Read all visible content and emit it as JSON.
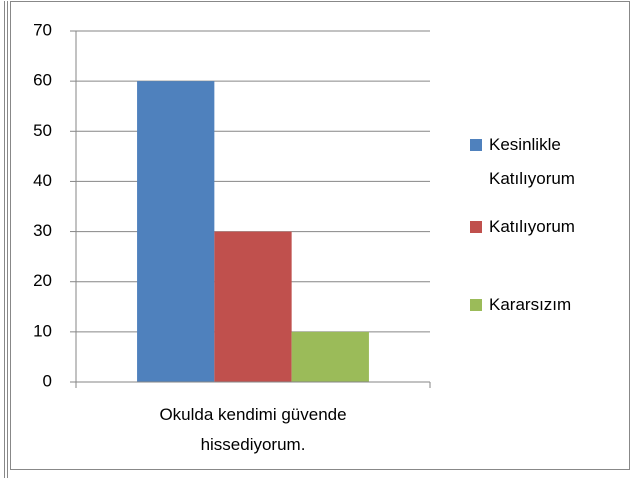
{
  "chart_data": {
    "type": "bar",
    "categories": [
      "Okulda kendimi güvende hissediyorum."
    ],
    "series": [
      {
        "name": "Kesinlikle Katılıyorum",
        "color": "#4f81bd",
        "values": [
          60
        ]
      },
      {
        "name": "Katılıyorum",
        "color": "#c0504d",
        "values": [
          30
        ]
      },
      {
        "name": "Kararsızım",
        "color": "#9bbb59",
        "values": [
          10
        ]
      }
    ],
    "ylim": [
      0,
      70
    ],
    "yticks": [
      0,
      10,
      20,
      30,
      40,
      50,
      60,
      70
    ],
    "grid": true,
    "legend": "right"
  }
}
